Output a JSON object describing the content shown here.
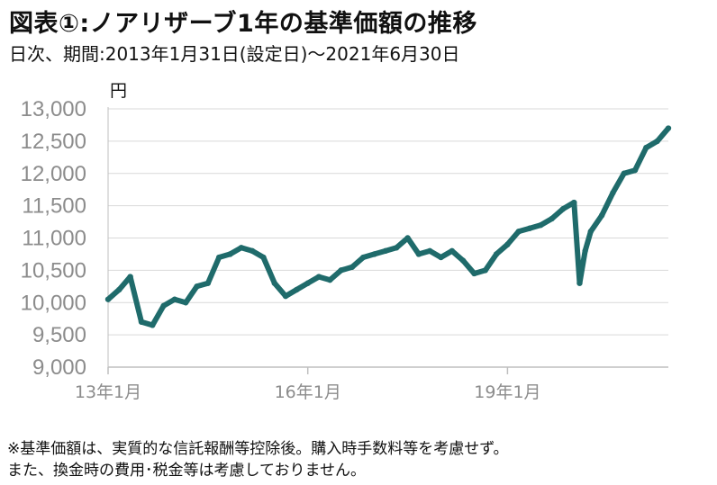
{
  "title": "図表①:ノアリザーブ1年の基準価額の推移",
  "subtitle": "日次、期間:2013年1月31日(設定日)～2021年6月30日",
  "notes": [
    "※基準価額は、実質的な信託報酬等控除後。購入時手数料等を考慮せず。",
    "また、換金時の費用･税金等は考慮しておりません。"
  ],
  "colors": {
    "line": "#1f6b6b",
    "grid": "#d9d9d9",
    "axis": "#bfbfbf",
    "tick_text": "#8c8c8c"
  },
  "chart_data": {
    "type": "line",
    "title": "図表①:ノアリザーブ1年の基準価額の推移",
    "ylabel": "円",
    "xlabel": "",
    "ylim": [
      9000,
      13000
    ],
    "yticks": [
      9000,
      9500,
      10000,
      10500,
      11000,
      11500,
      12000,
      12500,
      13000
    ],
    "ytick_labels": [
      "9,000",
      "9,500",
      "10,000",
      "10,500",
      "11,000",
      "11,500",
      "12,000",
      "12,500",
      "13,000"
    ],
    "xticks": [
      "2013-01",
      "2016-01",
      "2019-01"
    ],
    "xtick_labels": [
      "13年1月",
      "16年1月",
      "19年1月"
    ],
    "xlim": [
      "2013-01",
      "2021-06"
    ],
    "grid": "horizontal",
    "series": [
      {
        "x": [
          "2013-01",
          "2013-03",
          "2013-05",
          "2013-07",
          "2013-09",
          "2013-11",
          "2014-01",
          "2014-03",
          "2014-05",
          "2014-07",
          "2014-09",
          "2014-11",
          "2015-01",
          "2015-03",
          "2015-05",
          "2015-07",
          "2015-09",
          "2015-11",
          "2016-01",
          "2016-03",
          "2016-05",
          "2016-07",
          "2016-09",
          "2016-11",
          "2017-01",
          "2017-03",
          "2017-05",
          "2017-07",
          "2017-09",
          "2017-11",
          "2018-01",
          "2018-03",
          "2018-05",
          "2018-07",
          "2018-09",
          "2018-11",
          "2019-01",
          "2019-03",
          "2019-05",
          "2019-07",
          "2019-09",
          "2019-11",
          "2020-01",
          "2020-02",
          "2020-03",
          "2020-04",
          "2020-06",
          "2020-08",
          "2020-10",
          "2020-12",
          "2021-02",
          "2021-04",
          "2021-06"
        ],
        "values": [
          10050,
          10200,
          10400,
          9700,
          9650,
          9950,
          10050,
          10000,
          10250,
          10300,
          10700,
          10750,
          10850,
          10800,
          10700,
          10300,
          10100,
          10200,
          10300,
          10400,
          10350,
          10500,
          10550,
          10700,
          10750,
          10800,
          10850,
          11000,
          10750,
          10800,
          10700,
          10800,
          10650,
          10450,
          10500,
          10750,
          10900,
          11100,
          11150,
          11200,
          11300,
          11450,
          11550,
          10300,
          10800,
          11100,
          11350,
          11700,
          12000,
          12050,
          12400,
          12500,
          12700
        ]
      }
    ]
  }
}
